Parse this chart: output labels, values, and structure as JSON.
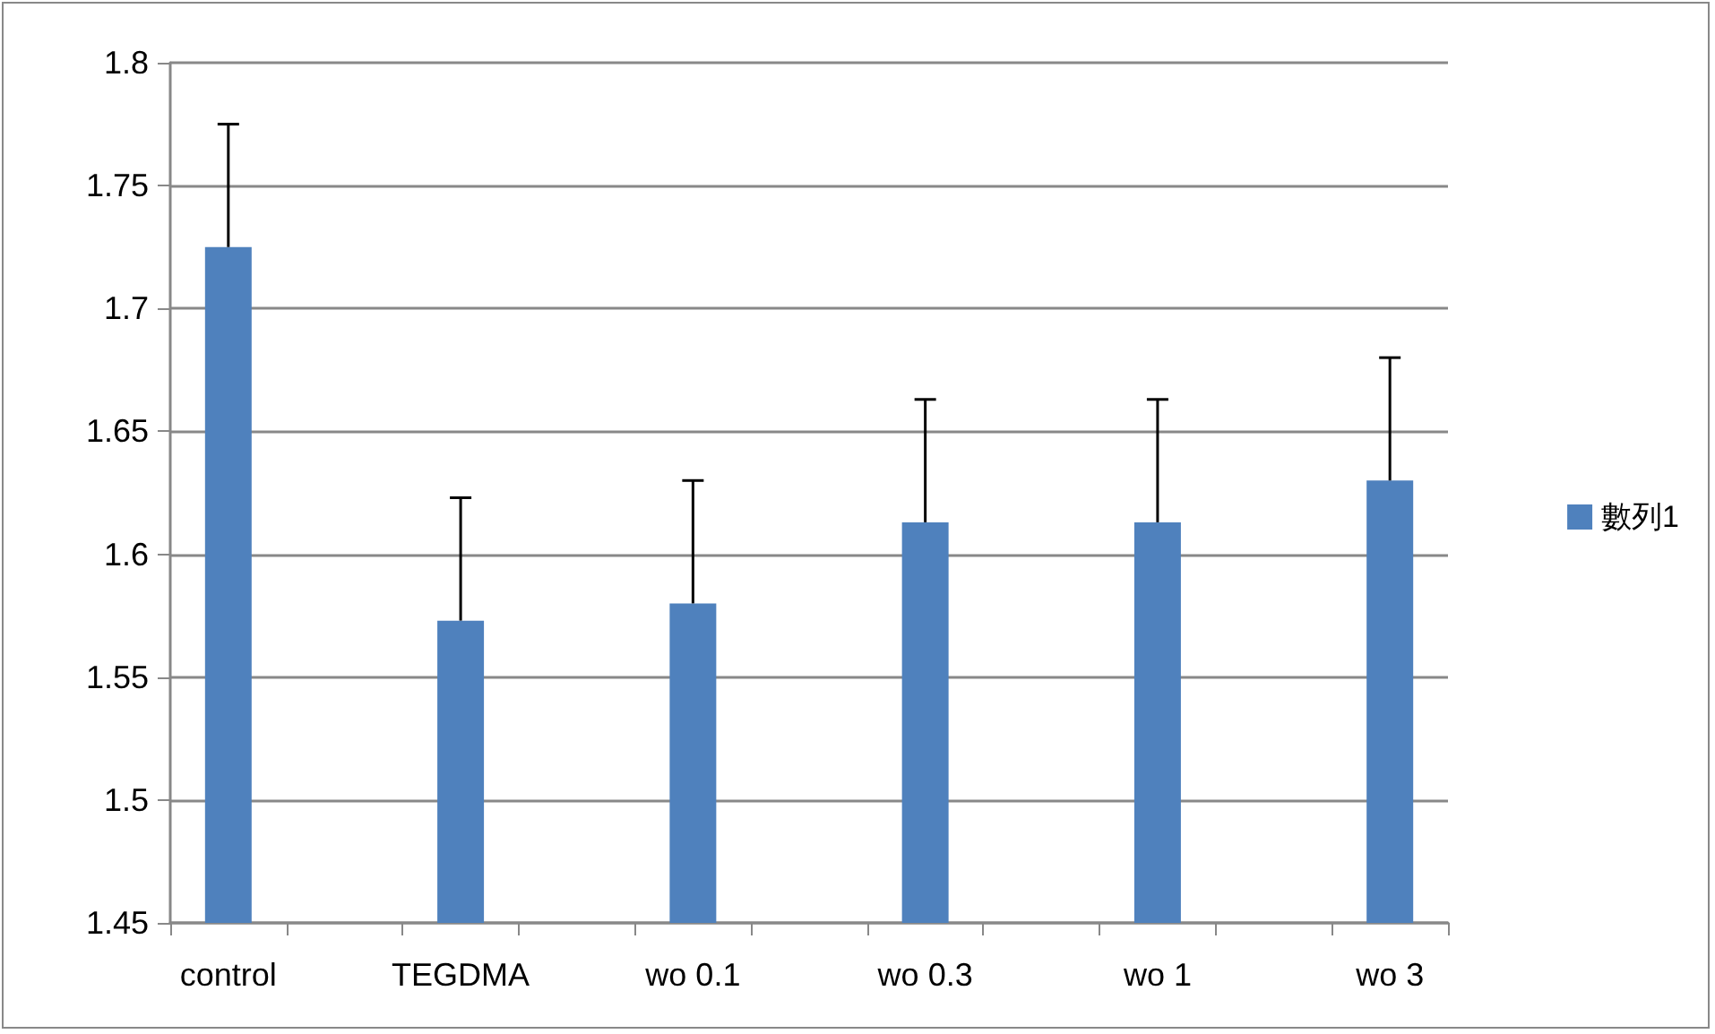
{
  "chart_data": {
    "type": "bar",
    "categories": [
      "control",
      null,
      "TEGDMA",
      null,
      "wo 0.1",
      null,
      "wo 0.3",
      null,
      "wo 1",
      null,
      "wo 3"
    ],
    "series": [
      {
        "name": "數列1",
        "color": "#4f81bd",
        "values": [
          1.725,
          null,
          1.573,
          null,
          1.58,
          null,
          1.613,
          null,
          1.613,
          null,
          1.63
        ],
        "errors": [
          [
            1.725,
            1.775
          ],
          null,
          [
            1.573,
            1.623
          ],
          null,
          [
            1.58,
            1.63
          ],
          null,
          [
            1.613,
            1.663
          ],
          null,
          [
            1.613,
            1.663
          ],
          null,
          [
            1.63,
            1.68
          ]
        ]
      }
    ],
    "ylim": [
      1.45,
      1.8
    ],
    "yticks": [
      1.45,
      1.5,
      1.55,
      1.6,
      1.65,
      1.7,
      1.75,
      1.8
    ],
    "grid": "y",
    "legend": "right"
  }
}
